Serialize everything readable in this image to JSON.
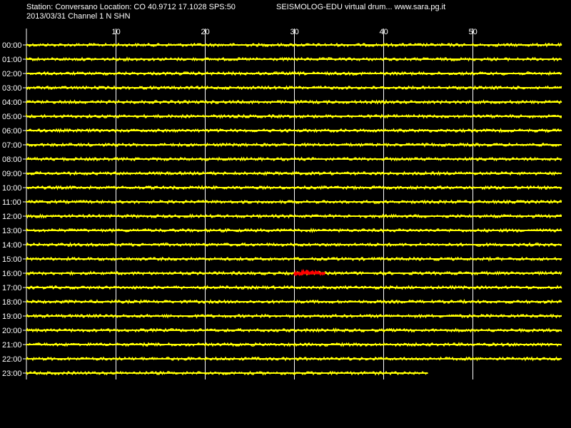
{
  "header": {
    "station": "Station: Conversano Location: CO 40.9712 17.1028 SPS:50",
    "date_channel": "2013/03/31  Channel 1 N SHN",
    "title": "SEISMOLOG-EDU virtual drum... www.sara.pg.it"
  },
  "colors": {
    "background": "#000000",
    "trace": "#ffff00",
    "event": "#ff0000",
    "grid": "#ffffff",
    "text": "#ffffff"
  },
  "chart_data": {
    "type": "line",
    "x_ticks": [
      "10",
      "20",
      "30",
      "40",
      "50"
    ],
    "x_tick_values": [
      10,
      20,
      30,
      40,
      50
    ],
    "xlim": [
      0,
      60
    ],
    "rows": [
      "00:00",
      "01:00",
      "02:00",
      "03:00",
      "04:00",
      "05:00",
      "06:00",
      "07:00",
      "08:00",
      "09:00",
      "10:00",
      "11:00",
      "12:00",
      "13:00",
      "14:00",
      "15:00",
      "16:00",
      "17:00",
      "18:00",
      "19:00",
      "20:00",
      "21:00",
      "22:00",
      "23:00"
    ],
    "last_row_end_minute": 45,
    "event": {
      "row": "16:00",
      "start_minute": 30,
      "end_minute": 33.5
    },
    "grid": true
  }
}
